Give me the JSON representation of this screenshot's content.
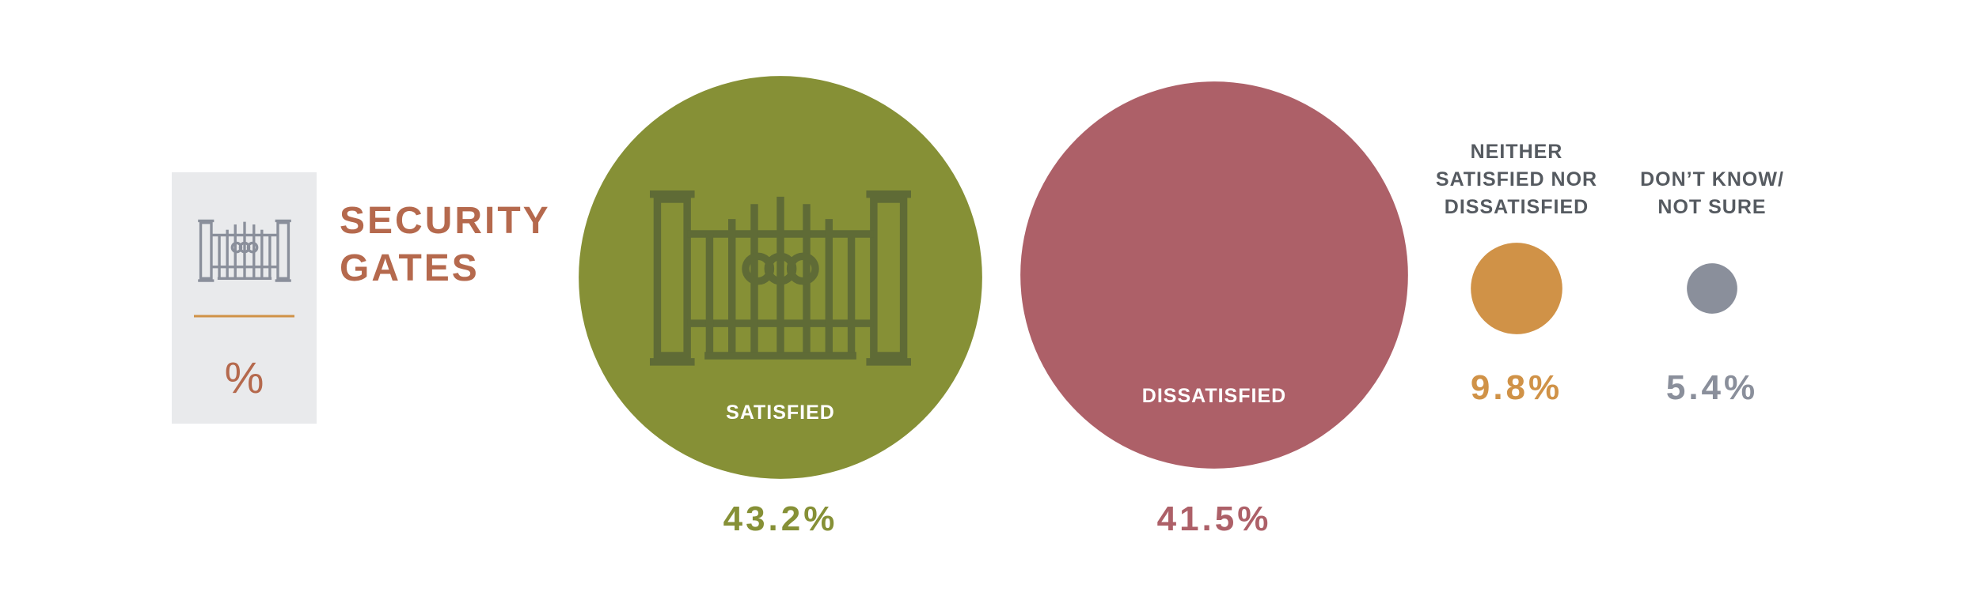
{
  "chart_data": {
    "type": "bubble",
    "title": "SECURITY GATES",
    "unit": "%",
    "categories": [
      "SATISFIED",
      "DISSATISFIED",
      "NEITHER SATISFIED NOR DISSATISFIED",
      "DON’T KNOW/ NOT SURE"
    ],
    "values": [
      43.2,
      41.5,
      9.8,
      5.4
    ],
    "value_labels": [
      "43.2%",
      "41.5%",
      "9.8%",
      "5.4%"
    ],
    "colors": [
      "#869036",
      "#ad6068",
      "#d09247",
      "#8a8f9b"
    ]
  }
}
